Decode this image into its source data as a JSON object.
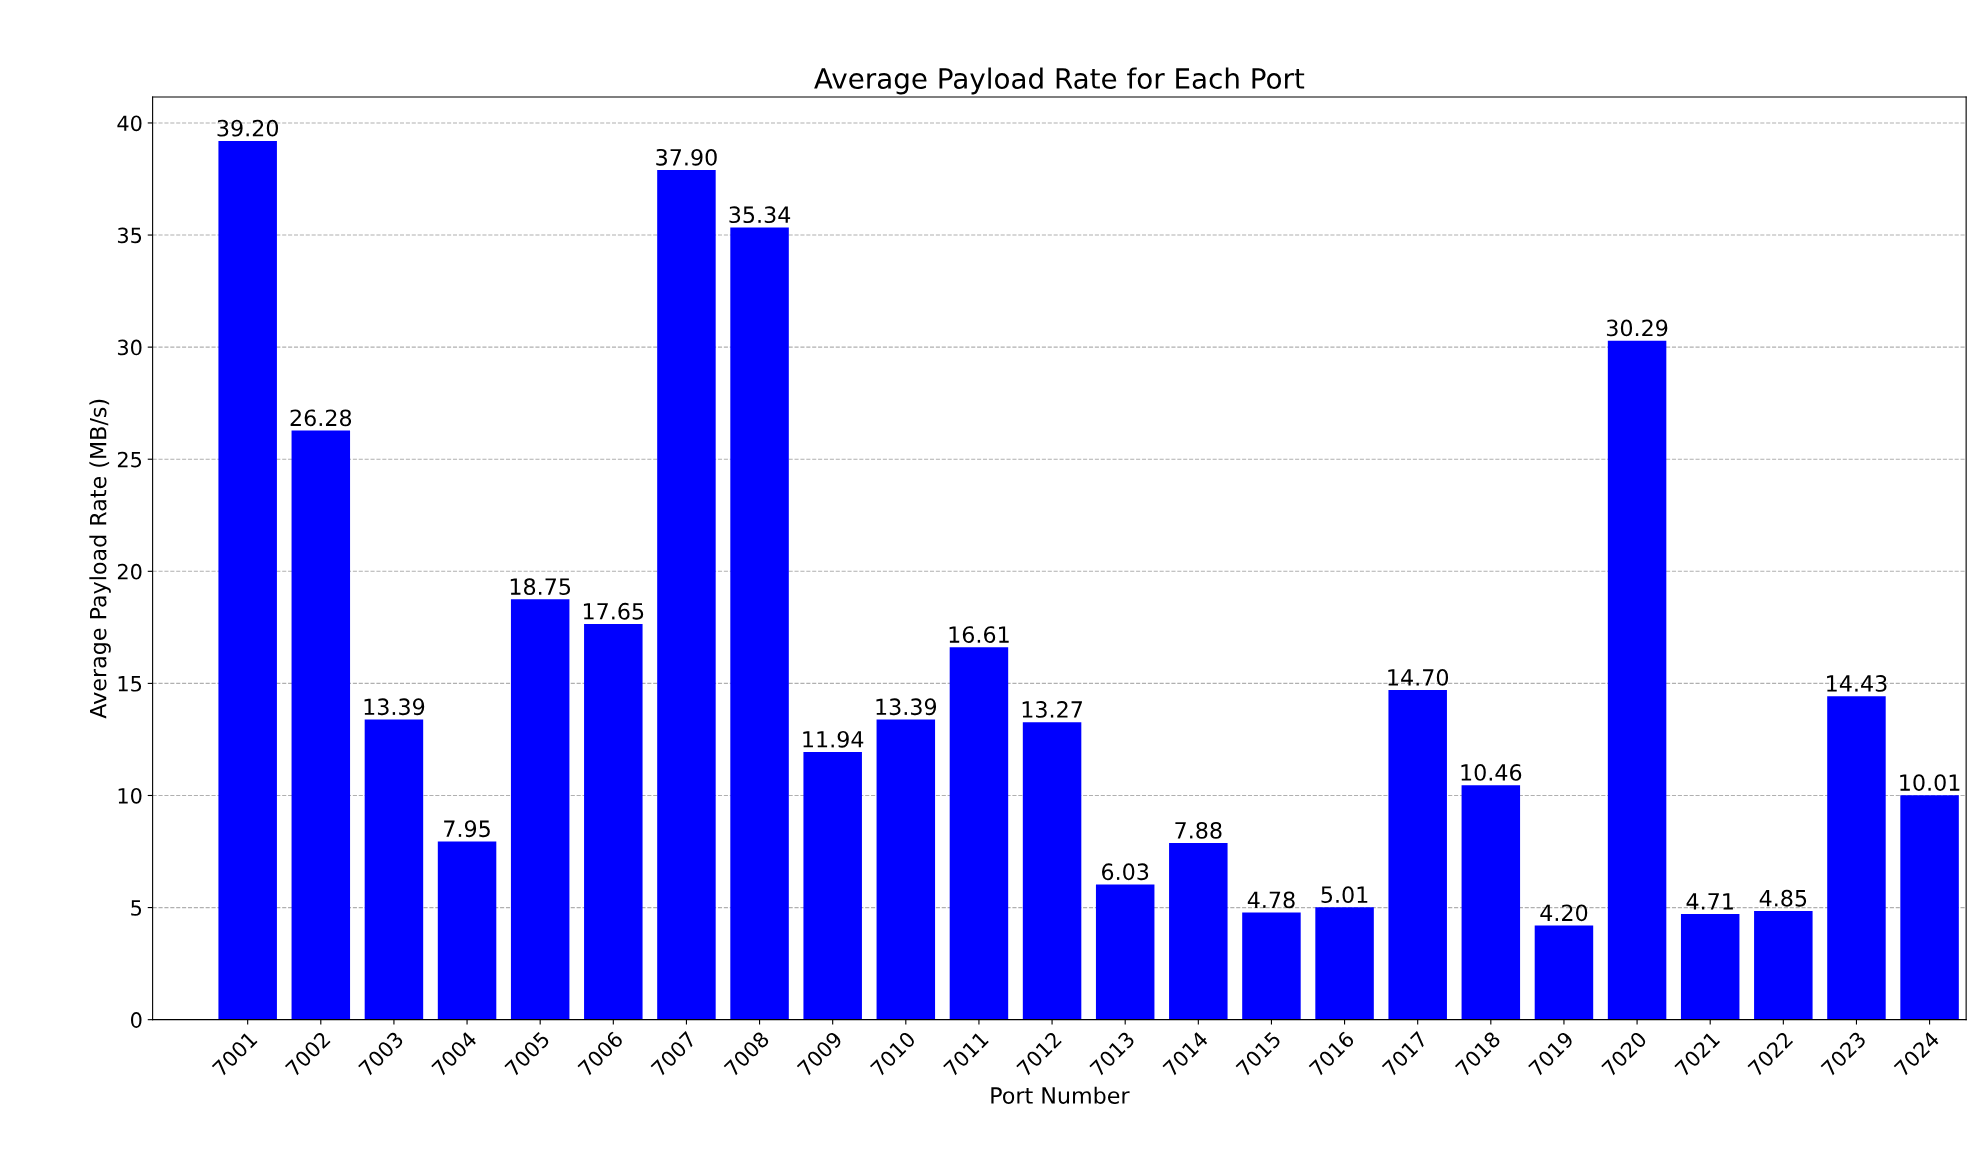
{
  "chart_data": {
    "type": "bar",
    "title": "Average Payload Rate for Each Port",
    "xlabel": "Port Number",
    "ylabel": "Average Payload Rate (MB/s)",
    "categories": [
      "7001",
      "7002",
      "7003",
      "7004",
      "7005",
      "7006",
      "7007",
      "7008",
      "7009",
      "7010",
      "7011",
      "7012",
      "7013",
      "7014",
      "7015",
      "7016",
      "7017",
      "7018",
      "7019",
      "7020",
      "7021",
      "7022",
      "7023",
      "7024"
    ],
    "values": [
      39.2,
      26.28,
      13.39,
      7.95,
      18.75,
      17.65,
      37.9,
      35.34,
      11.94,
      13.39,
      16.61,
      13.27,
      6.03,
      7.88,
      4.78,
      5.01,
      14.7,
      10.46,
      4.2,
      30.29,
      4.71,
      4.85,
      14.43,
      10.01
    ],
    "value_labels": [
      "39.20",
      "26.28",
      "13.39",
      "7.95",
      "18.75",
      "17.65",
      "37.90",
      "35.34",
      "11.94",
      "13.39",
      "16.61",
      "13.27",
      "6.03",
      "7.88",
      "4.78",
      "5.01",
      "14.70",
      "10.46",
      "4.20",
      "30.29",
      "4.71",
      "4.85",
      "14.43",
      "10.01"
    ],
    "color": "#0000ff",
    "ylim": [
      0,
      41.16
    ],
    "yticks": [
      0,
      5,
      10,
      15,
      20,
      25,
      30,
      35,
      40
    ],
    "grid": "y"
  }
}
